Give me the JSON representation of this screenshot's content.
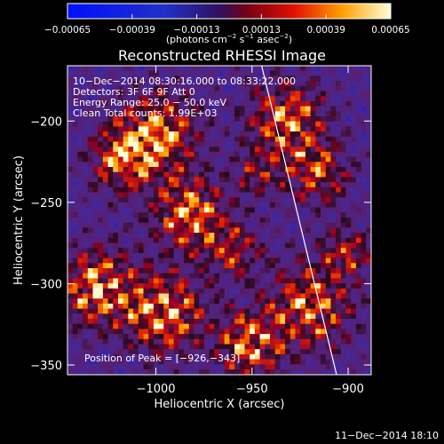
{
  "chart_data": {
    "type": "heatmap",
    "title": "Reconstructed RHESSI Image",
    "xlabel": "Heliocentric X (arcsec)",
    "ylabel": "Heliocentric Y (arcsec)",
    "xlim": [
      -1046,
      -888
    ],
    "ylim": [
      -356,
      -166
    ],
    "x_ticks": [
      {
        "value": -1000,
        "label": "−1000"
      },
      {
        "value": -950,
        "label": "−950"
      },
      {
        "value": -900,
        "label": "−900"
      }
    ],
    "y_ticks": [
      {
        "value": -200,
        "label": "−200"
      },
      {
        "value": -250,
        "label": "−250"
      },
      {
        "value": -300,
        "label": "−300"
      },
      {
        "value": -350,
        "label": "−350"
      }
    ],
    "colorbar": {
      "min": -0.00065,
      "max": 0.00065,
      "ticks": [
        {
          "value": -0.00065,
          "label": "−0.00065"
        },
        {
          "value": -0.00039,
          "label": "−0.00039"
        },
        {
          "value": -0.00013,
          "label": "−0.00013"
        },
        {
          "value": 0.00013,
          "label": "0.00013"
        },
        {
          "value": 0.00039,
          "label": "0.00039"
        },
        {
          "value": 0.00065,
          "label": "0.00065"
        }
      ],
      "unit_base": "(photons cm",
      "unit_exp1": "−2",
      "unit_mid1": " s",
      "unit_exp2": "−1",
      "unit_mid2": " asec",
      "unit_exp3": "−2",
      "unit_end": ")"
    },
    "annotations": [
      "10−Dec−2014 08:30:16.000 to 08:33:22.000",
      "Detectors: 3F 6F 9F  Att 0",
      "Energy Range: 25.0 − 50.0 keV",
      "Clean     Total counts: 1.99E+03"
    ],
    "peak_label": "Position of Peak = [−926,−343]",
    "peak": {
      "x": -926,
      "y": -343
    },
    "limb_line": [
      {
        "x": -945,
        "y": -166
      },
      {
        "x": -906,
        "y": -356
      }
    ],
    "footer_timestamp": "11−Dec−2014 18:10"
  }
}
